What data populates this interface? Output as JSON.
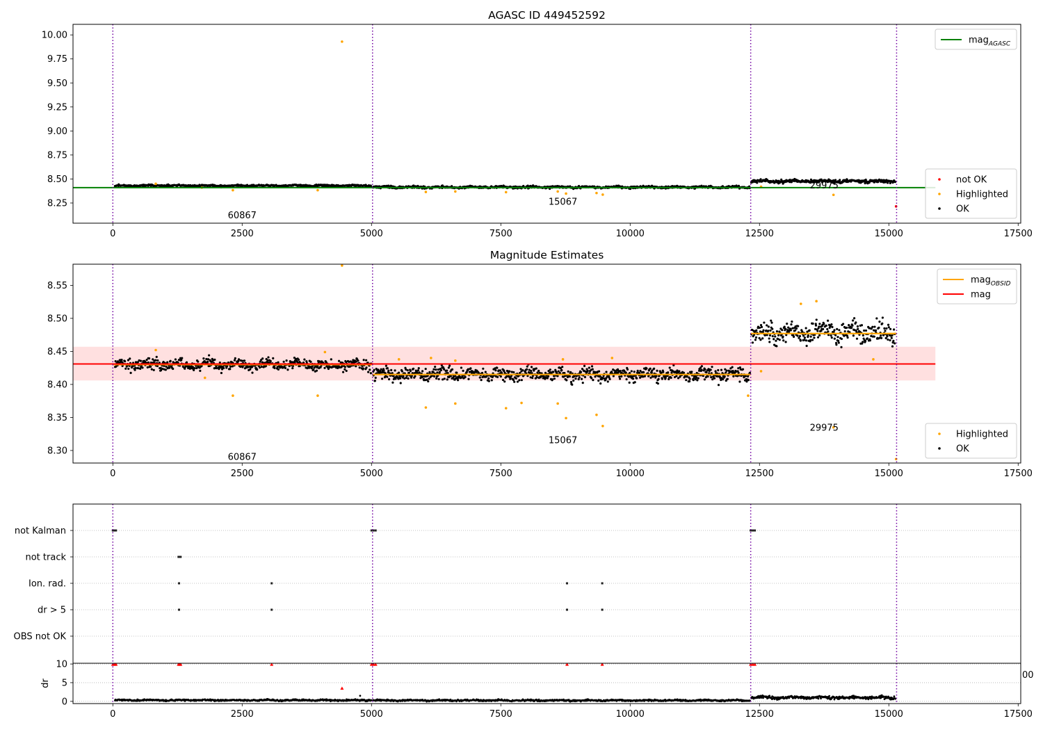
{
  "colors": {
    "ok": "#000000",
    "highlighted": "#ffa500",
    "not_ok": "#ff0000",
    "mag_agasc": "#008000",
    "mag_obsid": "#ffa500",
    "mag": "#ff0000",
    "band": "#ffcccc",
    "obs_boundary": "#7000a0"
  },
  "chart_data": [
    {
      "id": "top",
      "type": "scatter",
      "title": "AGASC ID 449452592",
      "xlim": [
        -770,
        17550
      ],
      "ylim": [
        8.04,
        10.11
      ],
      "xticks": [
        0,
        2500,
        5000,
        7500,
        10000,
        12500,
        15000,
        17500
      ],
      "yticks": [
        8.25,
        8.5,
        8.75,
        9.0,
        9.25,
        9.5,
        9.75,
        10.0
      ],
      "ytick_labels": [
        "8.25",
        "8.50",
        "8.75",
        "9.00",
        "9.25",
        "9.50",
        "9.75",
        "10.00"
      ],
      "grid": false,
      "obs_boundaries": [
        0,
        5020,
        12330,
        15150
      ],
      "obs_labels": [
        {
          "text": "60867",
          "x": 2500,
          "y": 8.12
        },
        {
          "text": "15067",
          "x": 8700,
          "y": 8.26
        },
        {
          "text": "29975",
          "x": 13750,
          "y": 8.43
        }
      ],
      "lines": [
        {
          "name": "mag_AGASC",
          "label_main": "mag",
          "label_sub": "AGASC",
          "color": "#008000",
          "x": [
            -770,
            15900
          ],
          "y": [
            8.41,
            8.41
          ]
        }
      ],
      "segments": [
        {
          "x0": 40,
          "x1": 5000,
          "center": 8.43,
          "spread": 0.007
        },
        {
          "x0": 5030,
          "x1": 12320,
          "center": 8.415,
          "spread": 0.008
        },
        {
          "x0": 12340,
          "x1": 15130,
          "center": 8.478,
          "spread": 0.012
        }
      ],
      "highlighted_points": [
        [
          4430,
          9.93
        ],
        [
          2320,
          8.383
        ],
        [
          3960,
          8.383
        ],
        [
          6050,
          8.365
        ],
        [
          6620,
          8.37
        ],
        [
          7600,
          8.363
        ],
        [
          8600,
          8.37
        ],
        [
          8760,
          8.348
        ],
        [
          9350,
          8.354
        ],
        [
          9470,
          8.337
        ],
        [
          13930,
          8.335
        ],
        [
          830,
          8.45
        ],
        [
          1720,
          8.41
        ],
        [
          12530,
          8.42
        ]
      ],
      "not_ok_points": [
        [
          15140,
          8.215
        ]
      ],
      "legends": [
        {
          "position": "upper right",
          "entries": [
            {
              "kind": "line",
              "main": "mag",
              "sub": "AGASC",
              "color": "#008000"
            }
          ]
        },
        {
          "position": "lower right",
          "entries": [
            {
              "kind": "marker",
              "label": "not OK",
              "color": "#ff0000"
            },
            {
              "kind": "marker",
              "label": "Highlighted",
              "color": "#ffa500"
            },
            {
              "kind": "marker",
              "label": "OK",
              "color": "#000000"
            }
          ]
        }
      ]
    },
    {
      "id": "middle",
      "type": "scatter",
      "title": "Magnitude Estimates",
      "xlim": [
        -770,
        17550
      ],
      "ylim": [
        8.281,
        8.582
      ],
      "xticks": [
        0,
        2500,
        5000,
        7500,
        10000,
        12500,
        15000,
        17500
      ],
      "yticks": [
        8.3,
        8.35,
        8.4,
        8.45,
        8.5,
        8.55
      ],
      "ytick_labels": [
        "8.30",
        "8.35",
        "8.40",
        "8.45",
        "8.50",
        "8.55"
      ],
      "grid": false,
      "obs_boundaries": [
        0,
        5020,
        12330,
        15150
      ],
      "obs_labels": [
        {
          "text": "60867",
          "x": 2500,
          "y": 8.29
        },
        {
          "text": "15067",
          "x": 8700,
          "y": 8.315
        },
        {
          "text": "29975",
          "x": 13750,
          "y": 8.334
        }
      ],
      "band": {
        "x0": -770,
        "x1": 15900,
        "y0": 8.406,
        "y1": 8.457
      },
      "lines": [
        {
          "name": "mag",
          "color": "#ff0000",
          "x": [
            -770,
            15900
          ],
          "y": [
            8.431,
            8.431
          ]
        }
      ],
      "step_lines": [
        {
          "name": "mag_OBSID",
          "color": "#ffa500",
          "x0": 0,
          "x1": 5020,
          "y": 8.43
        },
        {
          "name": "mag_OBSID",
          "color": "#ffa500",
          "x0": 5020,
          "x1": 12330,
          "y": 8.415
        },
        {
          "name": "mag_OBSID",
          "color": "#ffa500",
          "x0": 12330,
          "x1": 15150,
          "y": 8.477
        }
      ],
      "segments": [
        {
          "x0": 40,
          "x1": 5000,
          "center": 8.43,
          "spread": 0.006
        },
        {
          "x0": 5030,
          "x1": 12320,
          "center": 8.415,
          "spread": 0.007
        },
        {
          "x0": 12340,
          "x1": 15130,
          "center": 8.478,
          "spread": 0.012
        }
      ],
      "highlighted_points": [
        [
          4430,
          8.58
        ],
        [
          2320,
          8.383
        ],
        [
          3960,
          8.383
        ],
        [
          6050,
          8.365
        ],
        [
          6620,
          8.371
        ],
        [
          7600,
          8.364
        ],
        [
          7900,
          8.372
        ],
        [
          8600,
          8.371
        ],
        [
          8760,
          8.349
        ],
        [
          9350,
          8.354
        ],
        [
          9470,
          8.337
        ],
        [
          13930,
          8.335
        ],
        [
          15140,
          8.287
        ],
        [
          830,
          8.452
        ],
        [
          1780,
          8.41
        ],
        [
          4100,
          8.449
        ],
        [
          5530,
          8.438
        ],
        [
          6150,
          8.44
        ],
        [
          6620,
          8.436
        ],
        [
          8700,
          8.438
        ],
        [
          9650,
          8.44
        ],
        [
          12530,
          8.42
        ],
        [
          13600,
          8.526
        ],
        [
          13300,
          8.522
        ],
        [
          14700,
          8.438
        ],
        [
          12280,
          8.383
        ]
      ],
      "legends": [
        {
          "position": "upper right",
          "entries": [
            {
              "kind": "line",
              "main": "mag",
              "sub": "OBSID",
              "color": "#ffa500"
            },
            {
              "kind": "line",
              "main": "mag",
              "sub": "",
              "color": "#ff0000"
            }
          ]
        },
        {
          "position": "lower right",
          "entries": [
            {
              "kind": "marker",
              "label": "Highlighted",
              "color": "#ffa500"
            },
            {
              "kind": "marker",
              "label": "OK",
              "color": "#000000"
            }
          ]
        }
      ]
    },
    {
      "id": "flags",
      "type": "scatter",
      "title": "",
      "xlim": [
        -770,
        17550
      ],
      "ylim": [
        -0.5,
        5.0
      ],
      "categories": [
        "not Kalman",
        "not track",
        "Ion. rad.",
        "dr > 5",
        "OBS not OK"
      ],
      "grid": "horizontal dotted",
      "obs_boundaries": [
        0,
        5020,
        12330,
        15150
      ],
      "flag_points": [
        {
          "category": "not Kalman",
          "x": [
            0,
            30,
            60,
            5000,
            5040,
            5080,
            12330,
            12370,
            12410
          ]
        },
        {
          "category": "not track",
          "x": [
            1270,
            1290,
            1310
          ]
        },
        {
          "category": "Ion. rad.",
          "x": [
            1280,
            3070,
            8780,
            9460
          ]
        },
        {
          "category": "dr > 5",
          "x": [
            1280,
            3070,
            8780,
            9460
          ]
        }
      ]
    },
    {
      "id": "dr",
      "type": "scatter",
      "title": "",
      "xlim": [
        -770,
        17550
      ],
      "ylim": [
        -0.6,
        10.2
      ],
      "ylabel": "dr",
      "xticks": [
        0,
        2500,
        5000,
        7500,
        10000,
        12500,
        15000,
        17500
      ],
      "yticks": [
        0,
        5,
        10
      ],
      "ytick_labels": [
        "0",
        "5",
        "10"
      ],
      "grid": "horizontal dotted",
      "obs_boundaries": [
        0,
        5020,
        12330,
        15150
      ],
      "stray_tick_label": "00",
      "segments": [
        {
          "x0": 40,
          "x1": 5000,
          "center": 0.3,
          "spread": 0.15
        },
        {
          "x0": 5030,
          "x1": 12320,
          "center": 0.25,
          "spread": 0.15
        },
        {
          "x0": 12340,
          "x1": 15130,
          "center": 1.0,
          "spread": 0.3
        }
      ],
      "ok_points": [
        [
          4780,
          1.5
        ]
      ],
      "not_ok_points": [
        [
          4430,
          3.5
        ],
        [
          0,
          9.9
        ],
        [
          30,
          9.9
        ],
        [
          60,
          9.9
        ],
        [
          1270,
          9.9
        ],
        [
          1290,
          9.9
        ],
        [
          1310,
          9.9
        ],
        [
          3070,
          9.9
        ],
        [
          5000,
          9.9
        ],
        [
          5040,
          9.9
        ],
        [
          5080,
          9.9
        ],
        [
          8780,
          9.9
        ],
        [
          9460,
          9.9
        ],
        [
          12330,
          9.9
        ],
        [
          12370,
          9.9
        ],
        [
          12410,
          9.9
        ]
      ]
    }
  ]
}
